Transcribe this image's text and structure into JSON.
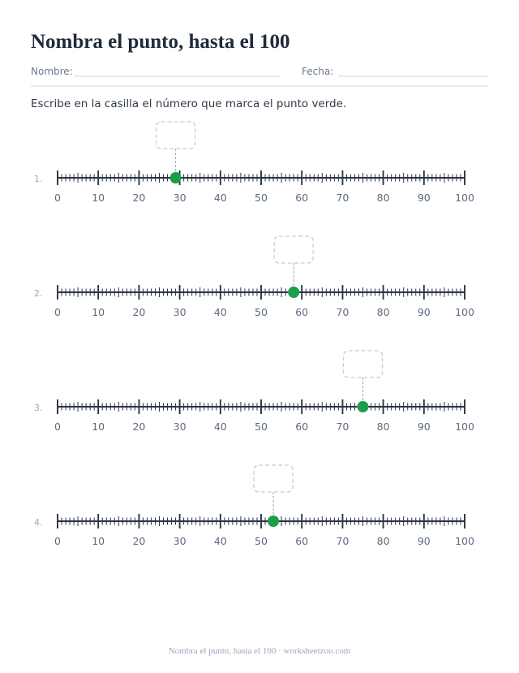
{
  "header": {
    "title": "Nombra el punto, hasta el 100",
    "name_label": "Nombre:",
    "date_label": "Fecha:"
  },
  "instructions": "Escribe en la casilla el número que marca el punto verde.",
  "number_line": {
    "xlim": [
      0,
      100
    ],
    "xticks": [
      0,
      10,
      20,
      30,
      40,
      50,
      60,
      70,
      80,
      90,
      100
    ],
    "minor_step": 1,
    "point_color": "#1a9e4a"
  },
  "problems": [
    {
      "label": "1.",
      "point": 29
    },
    {
      "label": "2.",
      "point": 58
    },
    {
      "label": "3.",
      "point": 75
    },
    {
      "label": "4.",
      "point": 53
    }
  ],
  "footer": "Nombra el punto, hasta el 100 · worksheetzoo.com"
}
